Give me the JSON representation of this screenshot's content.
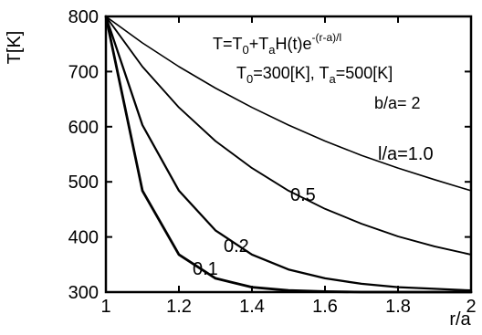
{
  "chart_data": {
    "type": "line",
    "title": "",
    "xlabel": "r/a",
    "ylabel": "T[K]",
    "xlim": [
      1,
      2
    ],
    "ylim": [
      300,
      800
    ],
    "x_ticks": [
      "1",
      "1.2",
      "1.4",
      "1.6",
      "1.8",
      "2"
    ],
    "y_ticks": [
      "300",
      "400",
      "500",
      "600",
      "700",
      "800"
    ],
    "grid": false,
    "legend": "none",
    "annotations": {
      "formula_lhs": "T=T",
      "formula_sub0": "0",
      "formula_mid": "+T",
      "formula_suba": "a",
      "formula_rhs": "H(t)e",
      "formula_exp": "-(r-a)/l",
      "params_t0": "T",
      "params_t0_sub": "0",
      "params_t0_val": "=300[K], T",
      "params_ta_sub": "a",
      "params_ta_val": "=500[K]",
      "ratio": "b/a= 2"
    },
    "series": [
      {
        "label": "l/a=1.0",
        "l_over_a": 1.0,
        "x": [
          1.0,
          1.1,
          1.2,
          1.3,
          1.4,
          1.5,
          1.6,
          1.7,
          1.8,
          1.9,
          2.0
        ],
        "y": [
          800,
          752,
          709,
          670,
          635,
          603,
          574,
          548,
          525,
          504,
          484
        ]
      },
      {
        "label": "0.5",
        "l_over_a": 0.5,
        "x": [
          1.0,
          1.1,
          1.2,
          1.3,
          1.4,
          1.5,
          1.6,
          1.7,
          1.8,
          1.9,
          2.0
        ],
        "y": [
          800,
          709,
          635,
          574,
          525,
          484,
          451,
          424,
          401,
          383,
          368
        ]
      },
      {
        "label": "0.2",
        "l_over_a": 0.2,
        "x": [
          1.0,
          1.1,
          1.2,
          1.3,
          1.4,
          1.5,
          1.6,
          1.7,
          1.8,
          1.9,
          2.0
        ],
        "y": [
          800,
          603,
          484,
          412,
          368,
          341,
          325,
          315,
          309,
          306,
          303
        ]
      },
      {
        "label": "0.1",
        "l_over_a": 0.1,
        "x": [
          1.0,
          1.1,
          1.2,
          1.3,
          1.4,
          1.5,
          1.6,
          1.7,
          1.8,
          1.9,
          2.0
        ],
        "y": [
          800,
          484,
          368,
          325,
          309,
          303,
          301,
          300,
          300,
          300,
          300
        ]
      }
    ]
  }
}
